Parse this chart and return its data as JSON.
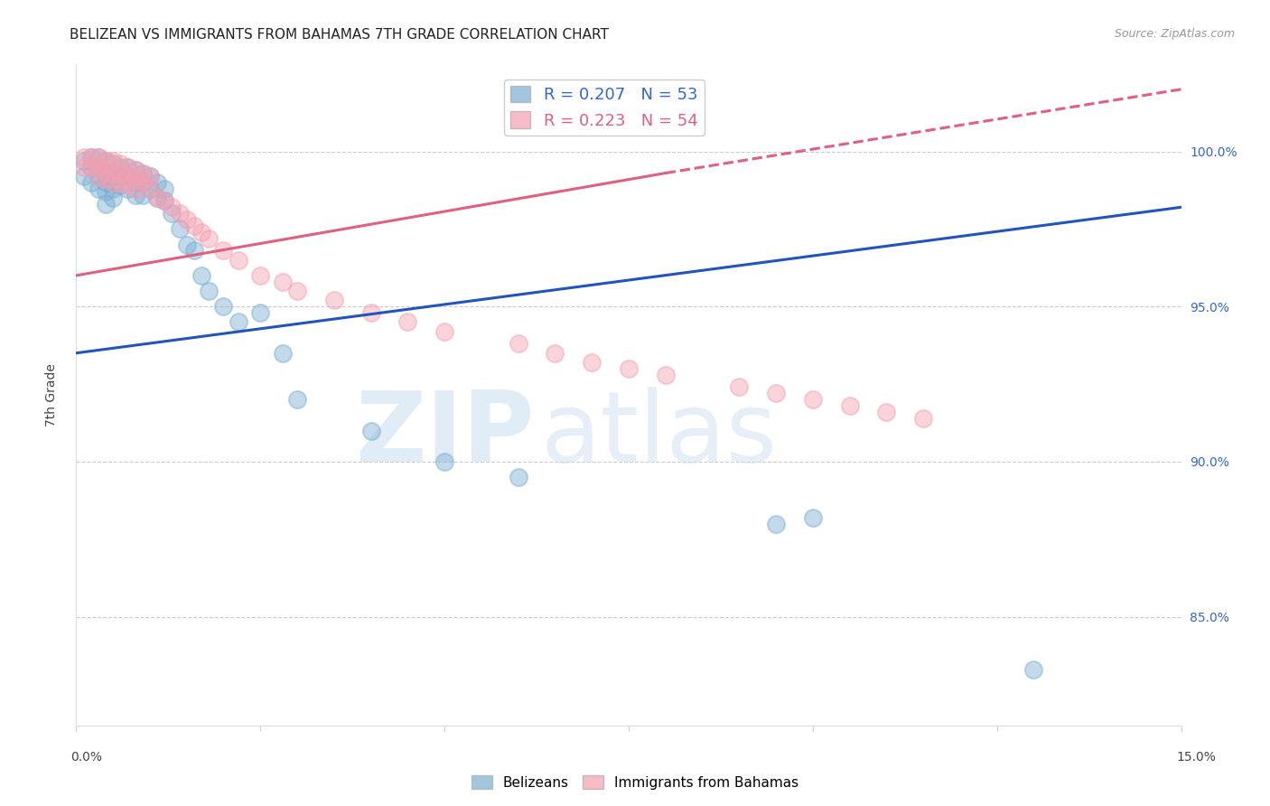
{
  "title": "BELIZEAN VS IMMIGRANTS FROM BAHAMAS 7TH GRADE CORRELATION CHART",
  "source": "Source: ZipAtlas.com",
  "ylabel": "7th Grade",
  "yaxis_labels": [
    "100.0%",
    "95.0%",
    "90.0%",
    "85.0%"
  ],
  "yaxis_values": [
    1.0,
    0.95,
    0.9,
    0.85
  ],
  "xmin": 0.0,
  "xmax": 0.15,
  "ymin": 0.815,
  "ymax": 1.028,
  "legend_blue_label": "R = 0.207   N = 53",
  "legend_pink_label": "R = 0.223   N = 54",
  "legend_belizeans": "Belizeans",
  "legend_bahamas": "Immigrants from Bahamas",
  "blue_color": "#7bafd4",
  "pink_color": "#f4a0b0",
  "blue_line_color": "#2255bb",
  "pink_line_color": "#e06080",
  "watermark_zip": "ZIP",
  "watermark_atlas": "atlas",
  "grid_color": "#cccccc",
  "background_color": "#ffffff",
  "title_fontsize": 11,
  "axis_label_fontsize": 10,
  "tick_fontsize": 10,
  "legend_fontsize": 13,
  "blue_line_x0": 0.0,
  "blue_line_x1": 0.15,
  "blue_line_y0": 0.935,
  "blue_line_y1": 0.982,
  "pink_line_solid_x0": 0.0,
  "pink_line_solid_x1": 0.08,
  "pink_line_solid_y0": 0.96,
  "pink_line_solid_y1": 0.993,
  "pink_line_dash_x0": 0.08,
  "pink_line_dash_x1": 0.15,
  "pink_line_dash_y0": 0.993,
  "pink_line_dash_y1": 1.02,
  "blue_scatter_x": [
    0.001,
    0.001,
    0.002,
    0.002,
    0.002,
    0.003,
    0.003,
    0.003,
    0.003,
    0.004,
    0.004,
    0.004,
    0.004,
    0.004,
    0.005,
    0.005,
    0.005,
    0.005,
    0.006,
    0.006,
    0.006,
    0.007,
    0.007,
    0.007,
    0.008,
    0.008,
    0.008,
    0.009,
    0.009,
    0.009,
    0.01,
    0.01,
    0.011,
    0.011,
    0.012,
    0.012,
    0.013,
    0.014,
    0.015,
    0.016,
    0.017,
    0.018,
    0.02,
    0.022,
    0.025,
    0.028,
    0.03,
    0.04,
    0.05,
    0.06,
    0.095,
    0.1,
    0.13
  ],
  "blue_scatter_y": [
    0.997,
    0.992,
    0.998,
    0.995,
    0.99,
    0.998,
    0.995,
    0.992,
    0.988,
    0.997,
    0.993,
    0.99,
    0.987,
    0.983,
    0.996,
    0.992,
    0.988,
    0.985,
    0.995,
    0.992,
    0.989,
    0.995,
    0.992,
    0.988,
    0.994,
    0.99,
    0.986,
    0.993,
    0.99,
    0.986,
    0.992,
    0.988,
    0.99,
    0.985,
    0.988,
    0.984,
    0.98,
    0.975,
    0.97,
    0.968,
    0.96,
    0.955,
    0.95,
    0.945,
    0.948,
    0.935,
    0.92,
    0.91,
    0.9,
    0.895,
    0.88,
    0.882,
    0.833
  ],
  "pink_scatter_x": [
    0.001,
    0.001,
    0.002,
    0.002,
    0.003,
    0.003,
    0.003,
    0.004,
    0.004,
    0.004,
    0.005,
    0.005,
    0.005,
    0.006,
    0.006,
    0.006,
    0.007,
    0.007,
    0.007,
    0.008,
    0.008,
    0.008,
    0.009,
    0.009,
    0.01,
    0.01,
    0.011,
    0.012,
    0.013,
    0.014,
    0.015,
    0.016,
    0.017,
    0.018,
    0.02,
    0.022,
    0.025,
    0.028,
    0.03,
    0.035,
    0.04,
    0.045,
    0.05,
    0.06,
    0.065,
    0.07,
    0.075,
    0.08,
    0.09,
    0.095,
    0.1,
    0.105,
    0.11,
    0.115
  ],
  "pink_scatter_y": [
    0.998,
    0.995,
    0.998,
    0.995,
    0.998,
    0.995,
    0.992,
    0.997,
    0.994,
    0.991,
    0.997,
    0.993,
    0.99,
    0.996,
    0.993,
    0.99,
    0.995,
    0.992,
    0.989,
    0.994,
    0.991,
    0.988,
    0.993,
    0.99,
    0.992,
    0.988,
    0.985,
    0.984,
    0.982,
    0.98,
    0.978,
    0.976,
    0.974,
    0.972,
    0.968,
    0.965,
    0.96,
    0.958,
    0.955,
    0.952,
    0.948,
    0.945,
    0.942,
    0.938,
    0.935,
    0.932,
    0.93,
    0.928,
    0.924,
    0.922,
    0.92,
    0.918,
    0.916,
    0.914
  ]
}
